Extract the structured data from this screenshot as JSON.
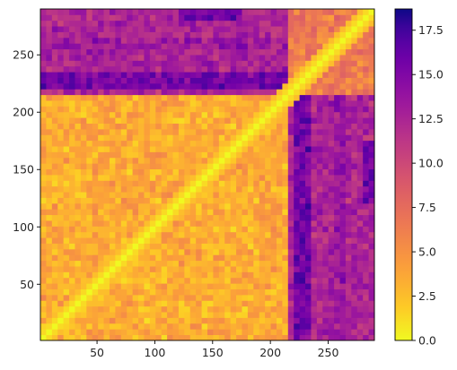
{
  "chart_data": {
    "type": "heatmap",
    "title": "",
    "xlabel": "",
    "ylabel": "",
    "x_range": [
      1,
      290
    ],
    "y_range": [
      1,
      290
    ],
    "x_ticks": [
      50,
      100,
      150,
      200,
      250
    ],
    "y_ticks": [
      50,
      100,
      150,
      200,
      250
    ],
    "colormap": "plasma_r",
    "color_range": [
      0.0,
      18.7
    ],
    "colorbar_ticks": [
      "0.0",
      "2.5",
      "5.0",
      "7.5",
      "10.0",
      "12.5",
      "15.0",
      "17.5"
    ],
    "colorbar_tick_values": [
      0.0,
      2.5,
      5.0,
      7.5,
      10.0,
      12.5,
      15.0,
      17.5
    ],
    "grid": false,
    "diagonal_value": 0.0,
    "blocks": [
      {
        "rows": [
          1,
          215
        ],
        "cols": [
          1,
          215
        ],
        "typical_value": 3.5
      },
      {
        "rows": [
          216,
          290
        ],
        "cols": [
          216,
          290
        ],
        "typical_value": 6.5
      },
      {
        "rows": [
          216,
          290
        ],
        "cols": [
          1,
          215
        ],
        "typical_value": 12.5
      },
      {
        "rows": [
          1,
          215
        ],
        "cols": [
          216,
          290
        ],
        "typical_value": 12.5
      }
    ],
    "notable_regions": [
      {
        "rows": [
          222,
          235
        ],
        "cols": [
          1,
          215
        ],
        "typical_value": 15.5
      },
      {
        "rows": [
          1,
          215
        ],
        "cols": [
          222,
          235
        ],
        "typical_value": 15.5
      },
      {
        "rows": [
          255,
          268
        ],
        "cols": [
          1,
          215
        ],
        "typical_value": 13.5
      },
      {
        "rows": [
          1,
          215
        ],
        "cols": [
          255,
          268
        ],
        "typical_value": 13.5
      },
      {
        "rows": [
          280,
          290
        ],
        "cols": [
          120,
          175
        ],
        "typical_value": 16.0
      },
      {
        "rows": [
          120,
          175
        ],
        "cols": [
          280,
          290
        ],
        "typical_value": 16.0
      }
    ]
  }
}
